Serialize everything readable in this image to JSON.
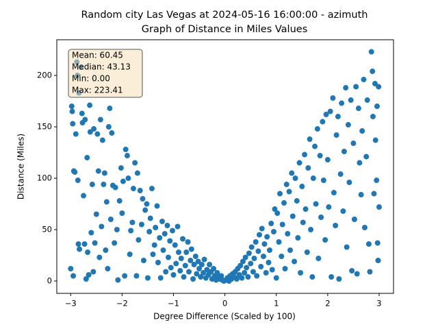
{
  "chart_data": {
    "type": "scatter",
    "title": "Random city Las Vegas at 2024-05-16 16:00:00  - azimuth",
    "subtitle": "Graph of Distance in Miles Values",
    "x_label": "Degree Difference (Scaled by 100)",
    "y_label": "Distance (Miles)",
    "stats": [
      "Mean: 60.45",
      "Median: 43.13",
      "Min: 0.00",
      "Max: 223.41"
    ],
    "xlim": [
      -3.27,
      3.28
    ],
    "ylim": [
      -12,
      234.7
    ],
    "xticks": [
      {
        "value": -3,
        "label": "−3"
      },
      {
        "value": -2,
        "label": "−2"
      },
      {
        "value": -1,
        "label": "−1"
      },
      0,
      1,
      2,
      3
    ],
    "yticks": [
      0,
      50,
      100,
      150,
      200
    ],
    "grid": false,
    "series": [
      {
        "color": "#1f77b4",
        "x": [
          -3.0,
          -2.98,
          -2.97,
          -2.96,
          -2.95,
          -2.94,
          -2.92,
          -2.9,
          -2.88,
          -2.87,
          -2.86,
          -2.85,
          -2.84,
          -2.83,
          -2.8,
          -2.78,
          -2.77,
          -2.75,
          -2.73,
          -2.72,
          -2.7,
          -2.68,
          -2.67,
          -2.65,
          -2.63,
          -2.62,
          -2.6,
          -2.58,
          -2.56,
          -2.55,
          -2.53,
          -2.5,
          -2.48,
          -2.46,
          -2.44,
          -2.42,
          -2.4,
          -2.38,
          -2.36,
          -2.34,
          -2.32,
          -2.3,
          -2.28,
          -2.26,
          -2.24,
          -2.22,
          -2.2,
          -2.18,
          -2.15,
          -2.13,
          -2.1,
          -2.08,
          -2.05,
          -2.02,
          -2.0,
          -1.98,
          -1.95,
          -1.93,
          -1.9,
          -1.88,
          -1.85,
          -1.83,
          -1.8,
          -1.78,
          -1.75,
          -1.72,
          -1.7,
          -1.68,
          -1.65,
          -1.62,
          -1.6,
          -1.58,
          -1.55,
          -1.52,
          -1.5,
          -1.47,
          -1.45,
          -1.42,
          -1.4,
          -1.37,
          -1.35,
          -1.32,
          -1.3,
          -1.27,
          -1.25,
          -1.22,
          -1.2,
          -1.17,
          -1.15,
          -1.12,
          -1.1,
          -1.07,
          -1.05,
          -1.02,
          -1.0,
          -0.97,
          -0.95,
          -0.92,
          -0.9,
          -0.87,
          -0.85,
          -0.82,
          -0.8,
          -0.77,
          -0.75,
          -0.72,
          -0.7,
          -0.67,
          -0.65,
          -0.62,
          -0.6,
          -0.57,
          -0.55,
          -0.52,
          -0.5,
          -0.47,
          -0.45,
          -0.42,
          -0.4,
          -0.37,
          -0.35,
          -0.32,
          -0.3,
          -0.27,
          -0.25,
          -0.22,
          -0.2,
          -0.17,
          -0.15,
          -0.12,
          -0.1,
          -0.07,
          -0.05,
          -0.02,
          0.02,
          0.05,
          0.08,
          0.1,
          0.13,
          0.15,
          0.18,
          0.2,
          0.23,
          0.25,
          0.28,
          0.3,
          0.33,
          0.35,
          0.38,
          0.4,
          0.42,
          0.45,
          0.47,
          0.5,
          0.52,
          0.55,
          0.57,
          0.6,
          0.62,
          0.65,
          0.67,
          0.7,
          0.72,
          0.75,
          0.77,
          0.8,
          0.82,
          0.85,
          0.87,
          0.9,
          0.92,
          0.95,
          0.97,
          1.0,
          1.02,
          1.05,
          1.07,
          1.1,
          1.12,
          1.15,
          1.17,
          1.2,
          1.22,
          1.25,
          1.27,
          1.3,
          1.32,
          1.35,
          1.37,
          1.4,
          1.42,
          1.45,
          1.47,
          1.5,
          1.52,
          1.55,
          1.57,
          1.6,
          1.62,
          1.65,
          1.67,
          1.7,
          1.72,
          1.75,
          1.77,
          1.8,
          1.82,
          1.85,
          1.87,
          1.9,
          1.92,
          1.95,
          1.97,
          2.0,
          2.02,
          2.05,
          2.07,
          2.1,
          2.12,
          2.15,
          2.17,
          2.2,
          2.22,
          2.25,
          2.27,
          2.3,
          2.32,
          2.35,
          2.37,
          2.4,
          2.42,
          2.45,
          2.47,
          2.5,
          2.52,
          2.55,
          2.57,
          2.6,
          2.62,
          2.65,
          2.67,
          2.7,
          2.72,
          2.75,
          2.77,
          2.8,
          2.82,
          2.85,
          2.87,
          2.88,
          2.9,
          2.92,
          2.93,
          2.95,
          2.96,
          2.97,
          2.98,
          3.0,
          2.99
        ],
        "values": [
          12,
          170,
          165,
          153,
          5,
          107,
          106,
          143,
          213,
          200,
          98,
          36,
          183,
          31,
          208,
          163,
          154,
          83,
          36,
          157,
          2,
          120,
          28,
          6,
          171,
          145,
          47,
          94,
          9,
          148,
          37,
          65,
          143,
          107,
          23,
          157,
          53,
          137,
          94,
          105,
          30,
          77,
          12,
          150,
          168,
          60,
          144,
          93,
          37,
          91,
          50,
          1,
          78,
          110,
          66,
          97,
          5,
          128,
          122,
          100,
          26,
          49,
          57,
          90,
          115,
          5,
          105,
          40,
          88,
          55,
          80,
          20,
          69,
          75,
          3,
          48,
          61,
          90,
          26,
          35,
          52,
          73,
          18,
          42,
          3,
          58,
          30,
          46,
          9,
          54,
          23,
          39,
          13,
          49,
          6,
          35,
          17,
          53,
          28,
          10,
          22,
          41,
          4,
          15,
          28,
          38,
          9,
          20,
          31,
          2,
          16,
          24,
          7,
          19,
          12,
          4,
          16,
          8,
          21,
          3,
          11,
          6,
          16,
          9,
          2,
          12,
          5,
          1,
          8,
          4,
          2,
          5,
          1,
          0,
          1,
          3,
          0,
          5,
          2,
          7,
          4,
          9,
          2,
          12,
          6,
          15,
          3,
          19,
          8,
          23,
          13,
          4,
          27,
          17,
          33,
          9,
          22,
          38,
          5,
          29,
          45,
          14,
          51,
          24,
          36,
          8,
          43,
          18,
          30,
          56,
          11,
          48,
          70,
          3,
          66,
          38,
          85,
          24,
          55,
          76,
          12,
          94,
          46,
          87,
          30,
          105,
          63,
          19,
          100,
          78,
          42,
          115,
          8,
          92,
          57,
          123,
          70,
          28,
          110,
          138,
          50,
          4,
          100,
          131,
          75,
          148,
          22,
          122,
          62,
          155,
          98,
          40,
          162,
          118,
          72,
          165,
          4,
          178,
          86,
          54,
          142,
          160,
          2,
          104,
          173,
          68,
          126,
          188,
          33,
          152,
          96,
          176,
          10,
          134,
          60,
          189,
          7,
          168,
          115,
          84,
          146,
          196,
          52,
          121,
          176,
          36,
          9,
          223,
          204,
          160,
          85,
          192,
          137,
          98,
          170,
          37,
          20,
          72,
          189
        ]
      }
    ]
  }
}
